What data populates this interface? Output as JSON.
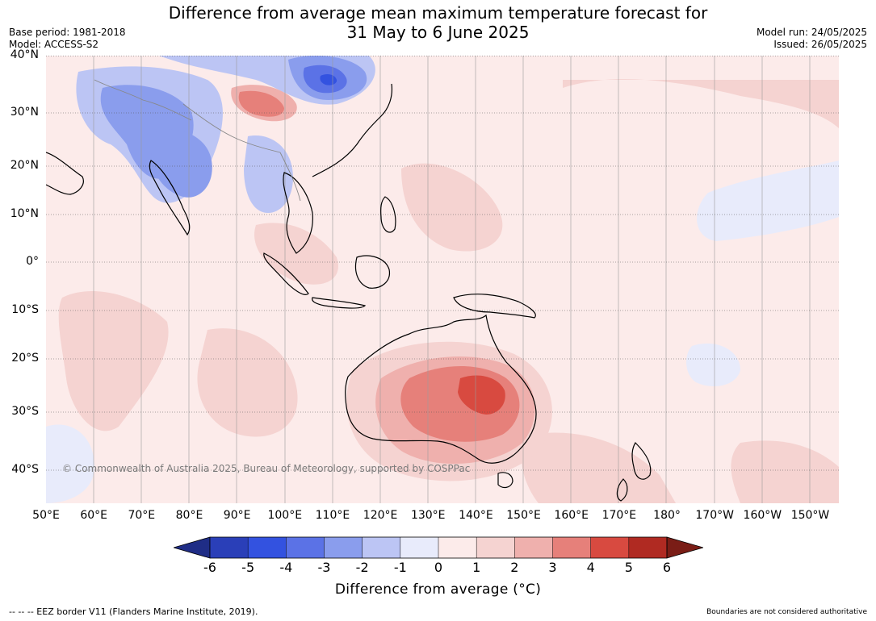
{
  "title": {
    "line1": "Difference from average mean maximum temperature forecast for",
    "line2": "31 May to 6 June 2025"
  },
  "meta_left": {
    "base_period": "Base period: 1981-2018",
    "model": "Model: ACCESS-S2"
  },
  "meta_right": {
    "model_run": "Model run: 24/05/2025",
    "issued": "Issued: 26/05/2025"
  },
  "map": {
    "lat_ticks": [
      "40°N",
      "30°N",
      "20°N",
      "10°N",
      "0°",
      "10°S",
      "20°S",
      "30°S",
      "40°S"
    ],
    "lat_values": [
      40,
      30,
      20,
      10,
      0,
      -10,
      -20,
      -30,
      -40
    ],
    "lon_ticks": [
      "50°E",
      "60°E",
      "70°E",
      "80°E",
      "90°E",
      "100°E",
      "110°E",
      "120°E",
      "130°E",
      "140°E",
      "150°E",
      "160°E",
      "170°E",
      "180°",
      "170°W",
      "160°W",
      "150°W"
    ],
    "lon_values": [
      50,
      60,
      70,
      80,
      90,
      100,
      110,
      120,
      130,
      140,
      150,
      160,
      170,
      180,
      190,
      200,
      210
    ],
    "extent": {
      "lon_min": 50,
      "lon_max": 216,
      "lat_min": -47,
      "lat_max": 40
    },
    "ocean_color": "#fcebea",
    "land_outline_color": "#000000",
    "copyright": "© Commonwealth of Australia 2025, Bureau of Meteorology, supported by COSPPac"
  },
  "colorbar": {
    "ticks": [
      "-6",
      "-5",
      "-4",
      "-3",
      "-2",
      "-1",
      "0",
      "1",
      "2",
      "3",
      "4",
      "5",
      "6"
    ],
    "colors": [
      "#1f2d86",
      "#2a3fb8",
      "#3352e0",
      "#5b72e6",
      "#8a9ded",
      "#bcc5f4",
      "#e8ebfb",
      "#fcebea",
      "#f5d3d1",
      "#efb0ad",
      "#e6807a",
      "#d84a40",
      "#b02a22",
      "#7a1d16"
    ],
    "label": "Difference from average (°C)"
  },
  "footer": {
    "eez_note": "--  --  -- EEZ border V11 (Flanders Marine Institute, 2019).",
    "disclaimer": "Boundaries are not considered authoritative"
  }
}
